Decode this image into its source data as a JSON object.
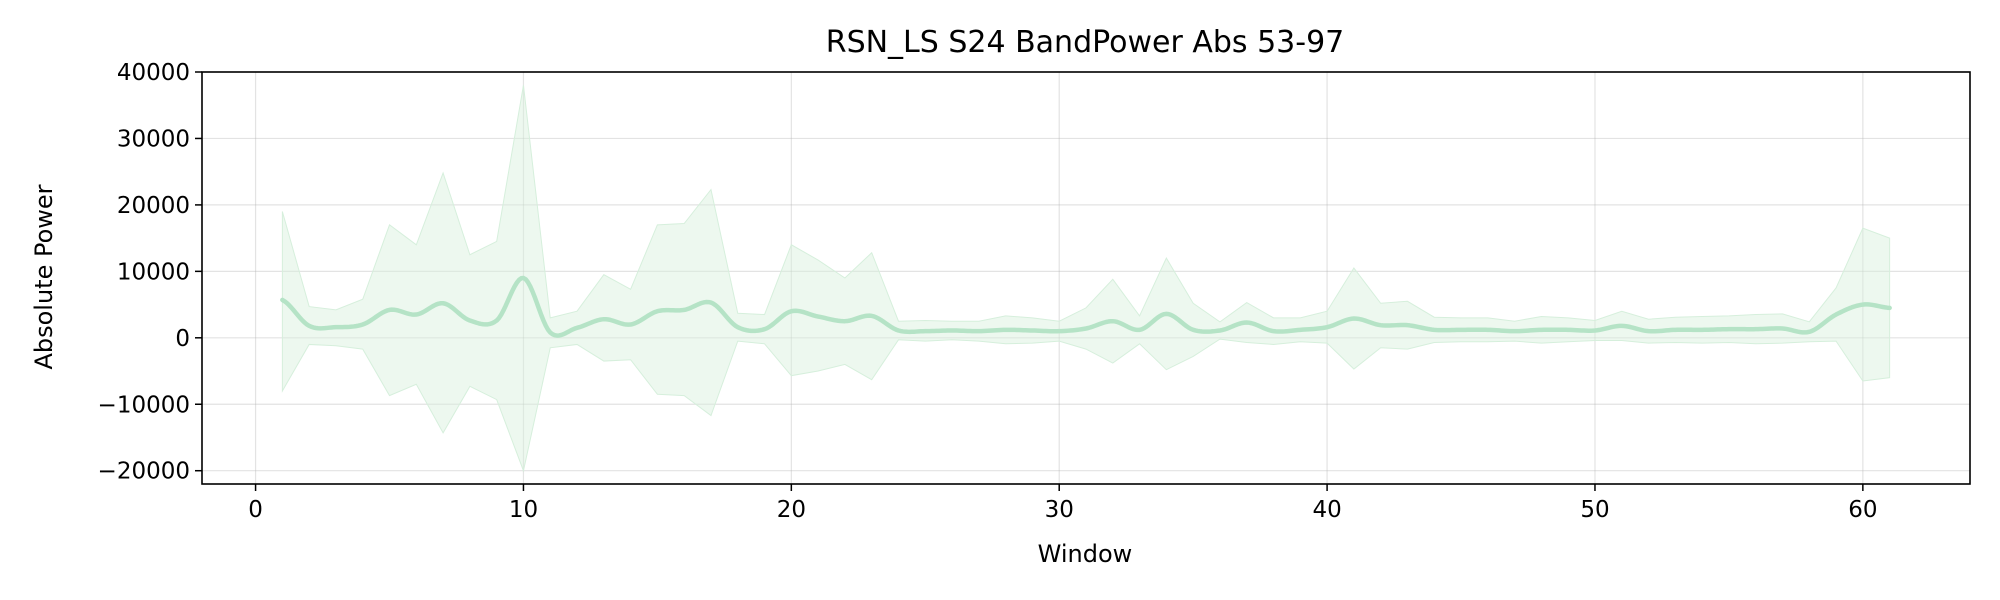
{
  "chart_data": {
    "type": "line",
    "title": "RSN_LS S24 BandPower Abs 53-97",
    "xlabel": "Window",
    "ylabel": "Absolute Power",
    "xlim": [
      -2,
      64
    ],
    "ylim": [
      -22000,
      40000
    ],
    "xticks": [
      0,
      10,
      20,
      30,
      40,
      50,
      60
    ],
    "yticks": [
      -20000,
      -10000,
      0,
      10000,
      20000,
      30000,
      40000
    ],
    "xtick_labels": [
      "0",
      "10",
      "20",
      "30",
      "40",
      "50",
      "60"
    ],
    "ytick_labels": [
      "−20000",
      "−10000",
      "0",
      "10000",
      "20000",
      "30000",
      "40000"
    ],
    "grid": true,
    "colors": {
      "line": "#b5e3c6",
      "band": "#d6efdc"
    },
    "series": [
      {
        "x": [
          1,
          2,
          3,
          4,
          5,
          6,
          7,
          8,
          9,
          10,
          11,
          12,
          13,
          14,
          15,
          16,
          17,
          18,
          19,
          20,
          21,
          22,
          23,
          24,
          25,
          26,
          27,
          28,
          29,
          30,
          31,
          32,
          33,
          34,
          35,
          36,
          37,
          38,
          39,
          40,
          41,
          42,
          43,
          44,
          45,
          46,
          47,
          48,
          49,
          50,
          51,
          52,
          53,
          54,
          55,
          56,
          57,
          58,
          59,
          60,
          61
        ],
        "mean": [
          5700,
          1800,
          1600,
          2000,
          4200,
          3500,
          5200,
          2600,
          2600,
          9000,
          800,
          1500,
          2800,
          2000,
          4000,
          4200,
          5300,
          1600,
          1300,
          4000,
          3200,
          2500,
          3300,
          1100,
          1000,
          1100,
          1000,
          1200,
          1100,
          1000,
          1400,
          2500,
          1200,
          3600,
          1200,
          1100,
          2300,
          1000,
          1200,
          1600,
          2900,
          1900,
          1900,
          1200,
          1200,
          1200,
          1000,
          1200,
          1200,
          1100,
          1800,
          1000,
          1200,
          1200,
          1300,
          1300,
          1400,
          900,
          3500,
          5000,
          4500
        ],
        "upper": [
          19000,
          4700,
          4200,
          5800,
          17000,
          14000,
          24800,
          12500,
          14500,
          38000,
          3000,
          4000,
          9500,
          7300,
          17000,
          17200,
          22300,
          3700,
          3500,
          14000,
          11700,
          9000,
          12800,
          2500,
          2600,
          2500,
          2500,
          3300,
          3000,
          2500,
          4500,
          8800,
          3300,
          12000,
          5200,
          2400,
          5300,
          3000,
          3000,
          4000,
          10500,
          5200,
          5500,
          3100,
          3000,
          3000,
          2500,
          3200,
          3000,
          2600,
          4000,
          2800,
          3100,
          3200,
          3300,
          3500,
          3600,
          2400,
          7500,
          16500,
          15000
        ],
        "lower": [
          -8000,
          -1000,
          -1200,
          -1700,
          -8700,
          -7000,
          -14300,
          -7300,
          -9300,
          -20000,
          -1500,
          -1000,
          -3500,
          -3300,
          -8500,
          -8700,
          -11700,
          -500,
          -900,
          -5700,
          -5000,
          -4000,
          -6300,
          -300,
          -500,
          -300,
          -500,
          -900,
          -800,
          -500,
          -1700,
          -3800,
          -900,
          -4800,
          -2800,
          -200,
          -700,
          -1000,
          -600,
          -800,
          -4700,
          -1500,
          -1700,
          -700,
          -600,
          -600,
          -500,
          -800,
          -600,
          -400,
          -400,
          -800,
          -700,
          -800,
          -700,
          -900,
          -800,
          -600,
          -500,
          -6500,
          -6000
        ]
      }
    ]
  }
}
